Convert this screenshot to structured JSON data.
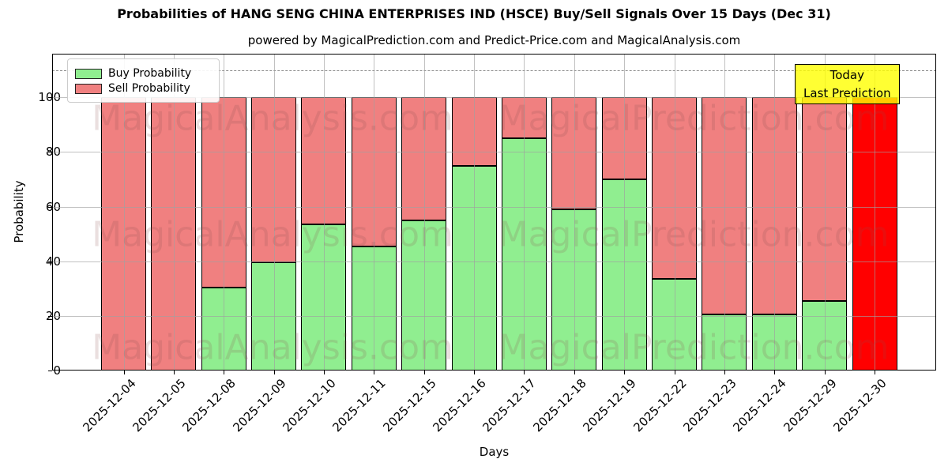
{
  "title": "Probabilities of HANG SENG CHINA ENTERPRISES IND (HSCE) Buy/Sell Signals Over 15 Days (Dec 31)",
  "subtitle": "powered by MagicalPrediction.com and Predict-Price.com and MagicalAnalysis.com",
  "legend": {
    "buy_label": "Buy Probability",
    "sell_label": "Sell Probability"
  },
  "annotation": {
    "line1": "Today",
    "line2": "Last Prediction",
    "bg_color": "#ffff00"
  },
  "watermarks": {
    "left_text": "MagicalAnalysis.com",
    "right_text": "MagicalPrediction.com"
  },
  "colors": {
    "buy": "#90ee90",
    "sell": "#f08080",
    "today_bar": "#ff0000",
    "bar_edge": "#000000",
    "grid": "#a0a0a0",
    "annotation_bg": "#ffff00"
  },
  "chart_data": {
    "type": "bar",
    "stacked": true,
    "title": "Probabilities of HANG SENG CHINA ENTERPRISES IND (HSCE) Buy/Sell Signals Over 15 Days (Dec 31)",
    "xlabel": "Days",
    "ylabel": "Probability",
    "categories": [
      "2025-12-04",
      "2025-12-05",
      "2025-12-08",
      "2025-12-09",
      "2025-12-10",
      "2025-12-11",
      "2025-12-15",
      "2025-12-16",
      "2025-12-17",
      "2025-12-18",
      "2025-12-19",
      "2025-12-22",
      "2025-12-23",
      "2025-12-24",
      "2025-12-29",
      "2025-12-30"
    ],
    "series": [
      {
        "name": "Buy Probability",
        "color": "#90ee90",
        "values": [
          0,
          0,
          30.5,
          39.5,
          53.5,
          45.5,
          55,
          75,
          85,
          59,
          70,
          33.5,
          20.5,
          20.5,
          25.5,
          0
        ]
      },
      {
        "name": "Sell Probability",
        "color": "#f08080",
        "values": [
          100,
          100,
          69.5,
          60.5,
          46.5,
          54.5,
          45,
          25,
          15,
          41,
          30,
          66.5,
          79.5,
          79.5,
          74.5,
          100
        ]
      }
    ],
    "today_bar": {
      "category": "2025-12-30",
      "index": 15,
      "color": "#ff0000",
      "label": "Today Last Prediction"
    },
    "yticks": [
      0,
      20,
      40,
      60,
      80,
      100
    ],
    "ylim": [
      0,
      116
    ],
    "dashed_line_y": 110,
    "grid": true,
    "legend_position": "upper left"
  }
}
